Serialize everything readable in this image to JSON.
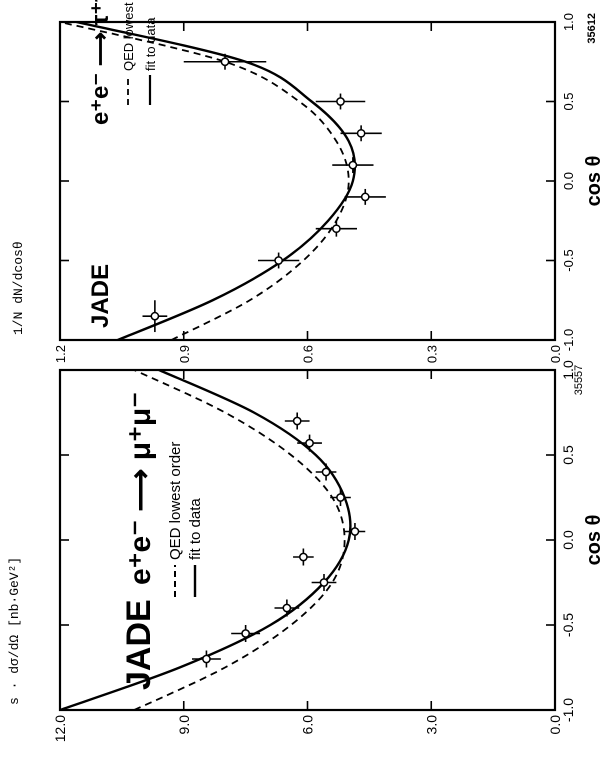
{
  "chart_data": [
    {
      "type": "scatter",
      "panel": "lower",
      "experiment_label": "JADE",
      "process_label": "e⁺e⁻ ⟶ μ⁺μ⁻",
      "ylabel": "s · dσ/dΩ  [nb·GeV²]",
      "xlabel": "cos θ",
      "figure_number": "35557",
      "xlim": [
        -1.0,
        1.0
      ],
      "ylim": [
        0.0,
        12.0
      ],
      "xticks": [
        "-1.0",
        "-0.5",
        "0.0",
        "0.5",
        "1.0"
      ],
      "yticks": [
        "0.0",
        "3.0",
        "6.0",
        "9.0",
        "12.0"
      ],
      "legend": [
        {
          "label": "QED lowest order",
          "style": "dashed"
        },
        {
          "label": "fit to data",
          "style": "solid"
        }
      ],
      "curves": {
        "qed": {
          "x": [
            -1.0,
            -0.75,
            -0.5,
            -0.25,
            0.0,
            0.25,
            0.5,
            0.75,
            1.0
          ],
          "y": [
            10.2,
            8.0,
            6.4,
            5.4,
            5.1,
            5.4,
            6.4,
            8.0,
            10.2
          ]
        },
        "fit": {
          "x": [
            -1.0,
            -0.75,
            -0.5,
            -0.25,
            0.0,
            0.25,
            0.5,
            0.75,
            1.0
          ],
          "y": [
            12.0,
            9.1,
            6.9,
            5.6,
            5.0,
            5.1,
            5.8,
            7.3,
            9.6
          ]
        }
      },
      "points": [
        {
          "x": -0.7,
          "y": 8.45,
          "xerr": 0.05,
          "yerr": 0.35
        },
        {
          "x": -0.55,
          "y": 7.5,
          "xerr": 0.05,
          "yerr": 0.35
        },
        {
          "x": -0.4,
          "y": 6.5,
          "xerr": 0.05,
          "yerr": 0.3
        },
        {
          "x": -0.25,
          "y": 5.6,
          "xerr": 0.05,
          "yerr": 0.3
        },
        {
          "x": -0.1,
          "y": 6.1,
          "xerr": 0.05,
          "yerr": 0.25
        },
        {
          "x": 0.05,
          "y": 4.85,
          "xerr": 0.05,
          "yerr": 0.25
        },
        {
          "x": 0.25,
          "y": 5.2,
          "xerr": 0.05,
          "yerr": 0.25
        },
        {
          "x": 0.4,
          "y": 5.55,
          "xerr": 0.05,
          "yerr": 0.25
        },
        {
          "x": 0.57,
          "y": 5.95,
          "xerr": 0.05,
          "yerr": 0.3
        },
        {
          "x": 0.7,
          "y": 6.25,
          "xerr": 0.05,
          "yerr": 0.3
        }
      ]
    },
    {
      "type": "scatter",
      "panel": "upper",
      "experiment_label": "JADE",
      "process_label": "e⁺e⁻ ⟶ τ⁺τ⁻",
      "ylabel": "1/N dN/dcosθ",
      "xlabel": "cos θ",
      "figure_number": "35612",
      "xlim": [
        -1.0,
        1.0
      ],
      "ylim": [
        0.0,
        1.2
      ],
      "xticks": [
        "-1.0",
        "-0.5",
        "0.0",
        "0.5",
        "1.0"
      ],
      "yticks": [
        "0.0",
        "0.3",
        "0.6",
        "0.9",
        "1.2"
      ],
      "legend": [
        {
          "label": "QED lowest order",
          "style": "dashed"
        },
        {
          "label": "fit to data",
          "style": "solid"
        }
      ],
      "curves": {
        "qed": {
          "x": [
            -1.0,
            -0.75,
            -0.5,
            -0.25,
            0.0,
            0.25,
            0.5,
            0.75,
            1.0
          ],
          "y": [
            0.93,
            0.74,
            0.61,
            0.53,
            0.5,
            0.53,
            0.62,
            0.8,
            1.2
          ]
        },
        "fit": {
          "x": [
            -1.0,
            -0.75,
            -0.5,
            -0.25,
            0.0,
            0.25,
            0.5,
            0.75,
            1.0
          ],
          "y": [
            1.06,
            0.83,
            0.66,
            0.55,
            0.49,
            0.5,
            0.59,
            0.75,
            1.16
          ]
        }
      },
      "points": [
        {
          "x": -0.85,
          "y": 0.97,
          "xerr": 0.1,
          "yerr": 0.03
        },
        {
          "x": -0.5,
          "y": 0.67,
          "xerr": 0.05,
          "yerr": 0.05
        },
        {
          "x": -0.3,
          "y": 0.53,
          "xerr": 0.05,
          "yerr": 0.05
        },
        {
          "x": -0.1,
          "y": 0.46,
          "xerr": 0.05,
          "yerr": 0.05
        },
        {
          "x": 0.1,
          "y": 0.49,
          "xerr": 0.05,
          "yerr": 0.05
        },
        {
          "x": 0.3,
          "y": 0.47,
          "xerr": 0.05,
          "yerr": 0.05
        },
        {
          "x": 0.5,
          "y": 0.52,
          "xerr": 0.05,
          "yerr": 0.06
        },
        {
          "x": 0.75,
          "y": 0.8,
          "xerr": 0.05,
          "yerr": 0.1
        }
      ]
    }
  ]
}
